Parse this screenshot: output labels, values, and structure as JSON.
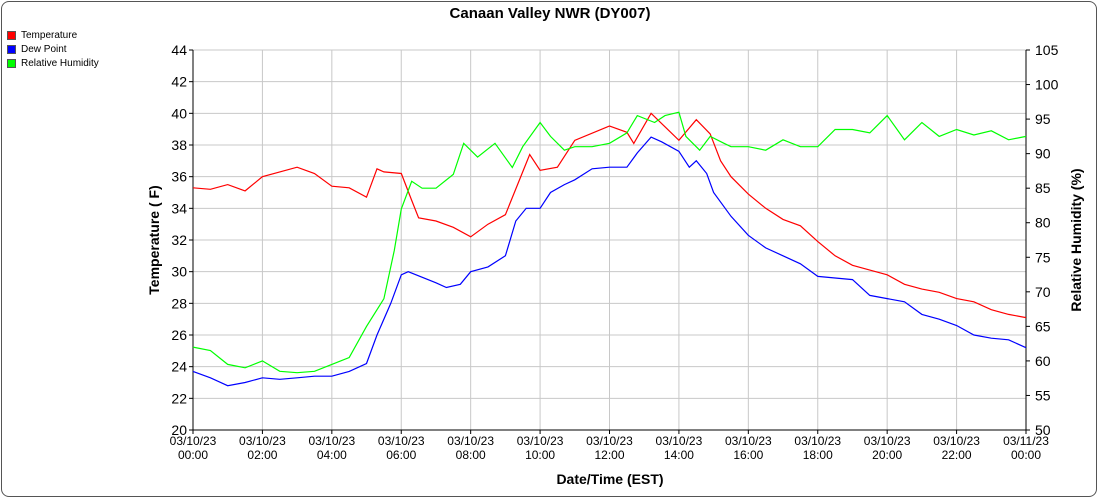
{
  "chart_data": {
    "type": "line",
    "title": "Canaan Valley NWR (DY007)",
    "xlabel": "Date/Time (EST)",
    "ylabel": "Temperature ( F)",
    "y2label": "Relative Humidity (%)",
    "xlim": [
      0,
      24
    ],
    "ylim": [
      20,
      44
    ],
    "y2lim": [
      50,
      105
    ],
    "grid": true,
    "legend_position": "top-left",
    "x_ticks": [
      {
        "date": "03/10/23",
        "time": "00:00"
      },
      {
        "date": "03/10/23",
        "time": "02:00"
      },
      {
        "date": "03/10/23",
        "time": "04:00"
      },
      {
        "date": "03/10/23",
        "time": "06:00"
      },
      {
        "date": "03/10/23",
        "time": "08:00"
      },
      {
        "date": "03/10/23",
        "time": "10:00"
      },
      {
        "date": "03/10/23",
        "time": "12:00"
      },
      {
        "date": "03/10/23",
        "time": "14:00"
      },
      {
        "date": "03/10/23",
        "time": "16:00"
      },
      {
        "date": "03/10/23",
        "time": "18:00"
      },
      {
        "date": "03/10/23",
        "time": "20:00"
      },
      {
        "date": "03/10/23",
        "time": "22:00"
      },
      {
        "date": "03/11/23",
        "time": "00:00"
      }
    ],
    "y_ticks": [
      20,
      22,
      24,
      26,
      28,
      30,
      32,
      34,
      36,
      38,
      40,
      42,
      44
    ],
    "y2_ticks": [
      50,
      55,
      60,
      65,
      70,
      75,
      80,
      85,
      90,
      95,
      100,
      105
    ],
    "series": [
      {
        "name": "Temperature",
        "color": "#ff0000",
        "axis": "left",
        "x": [
          0,
          0.5,
          1,
          1.5,
          2,
          2.5,
          3,
          3.5,
          4,
          4.5,
          5,
          5.3,
          5.5,
          6,
          6.3,
          6.5,
          7,
          7.5,
          8,
          8.5,
          9,
          9.5,
          9.7,
          10,
          10.5,
          11,
          12,
          12.5,
          12.7,
          13.2,
          14,
          14.5,
          14.9,
          15.2,
          15.5,
          16,
          16.5,
          17,
          17.5,
          18,
          18.5,
          19,
          19.5,
          20,
          20.5,
          21,
          21.5,
          22,
          22.5,
          23,
          23.5,
          24
        ],
        "y": [
          35.3,
          35.2,
          35.5,
          35.1,
          36.0,
          36.3,
          36.6,
          36.2,
          35.4,
          35.3,
          34.7,
          36.5,
          36.3,
          36.2,
          34.5,
          33.4,
          33.2,
          32.8,
          32.2,
          33.0,
          33.6,
          36.3,
          37.4,
          36.4,
          36.6,
          38.3,
          39.2,
          38.8,
          38.1,
          40.0,
          38.3,
          39.6,
          38.7,
          37.0,
          36.0,
          34.9,
          34.0,
          33.3,
          32.9,
          31.9,
          31.0,
          30.4,
          30.1,
          29.8,
          29.2,
          28.9,
          28.7,
          28.3,
          28.1,
          27.6,
          27.3,
          27.1
        ]
      },
      {
        "name": "Dew Point",
        "color": "#0000ff",
        "axis": "left",
        "x": [
          0,
          0.5,
          1,
          1.5,
          2,
          2.5,
          3,
          3.5,
          4,
          4.5,
          5,
          5.3,
          5.7,
          6,
          6.2,
          7,
          7.3,
          7.7,
          8,
          8.5,
          9,
          9.3,
          9.6,
          10,
          10.3,
          10.7,
          11,
          11.5,
          12,
          12.5,
          12.8,
          13.2,
          13.5,
          14,
          14.3,
          14.5,
          14.8,
          15,
          15.5,
          16,
          16.5,
          17,
          17.5,
          18,
          18.5,
          19,
          19.5,
          20,
          20.5,
          21,
          21.5,
          22,
          22.5,
          23,
          23.5,
          24
        ],
        "y": [
          23.7,
          23.3,
          22.8,
          23.0,
          23.3,
          23.2,
          23.3,
          23.4,
          23.4,
          23.7,
          24.2,
          26.0,
          28.0,
          29.8,
          30.0,
          29.3,
          29.0,
          29.2,
          30.0,
          30.3,
          31.0,
          33.2,
          34.0,
          34.0,
          35.0,
          35.5,
          35.8,
          36.5,
          36.6,
          36.6,
          37.5,
          38.5,
          38.2,
          37.6,
          36.6,
          37.0,
          36.2,
          35.0,
          33.5,
          32.3,
          31.5,
          31.0,
          30.5,
          29.7,
          29.6,
          29.5,
          28.5,
          28.3,
          28.1,
          27.3,
          27.0,
          26.6,
          26.0,
          25.8,
          25.7,
          25.2
        ]
      },
      {
        "name": "Relative Humidity",
        "color": "#00ff00",
        "axis": "right",
        "x": [
          0,
          0.5,
          1,
          1.5,
          2,
          2.5,
          3,
          3.5,
          4,
          4.5,
          5,
          5.5,
          5.8,
          6,
          6.3,
          6.6,
          7,
          7.5,
          7.8,
          8.2,
          8.7,
          9.2,
          9.5,
          10,
          10.3,
          10.7,
          11,
          11.5,
          12,
          12.5,
          12.8,
          13.3,
          13.6,
          14,
          14.2,
          14.6,
          14.9,
          15.3,
          15.5,
          16,
          16.5,
          17,
          17.5,
          18,
          18.5,
          19,
          19.5,
          20,
          20.5,
          21,
          21.5,
          22,
          22.5,
          23,
          23.5,
          24
        ],
        "y": [
          62,
          61.5,
          59.5,
          59,
          60,
          58.5,
          58.3,
          58.5,
          59.5,
          60.5,
          65,
          69,
          76,
          82,
          86,
          85,
          85,
          87,
          91.5,
          89.5,
          91.5,
          88,
          91,
          94.5,
          92.5,
          90.5,
          91,
          91,
          91.5,
          93,
          95.5,
          94.5,
          95.5,
          96,
          92.5,
          90.5,
          92.5,
          91.5,
          91,
          91,
          90.5,
          92,
          91,
          91,
          93.5,
          93.5,
          93,
          95.5,
          92,
          94.5,
          92.5,
          93.5,
          92.7,
          93.3,
          92,
          92.5
        ]
      }
    ]
  }
}
